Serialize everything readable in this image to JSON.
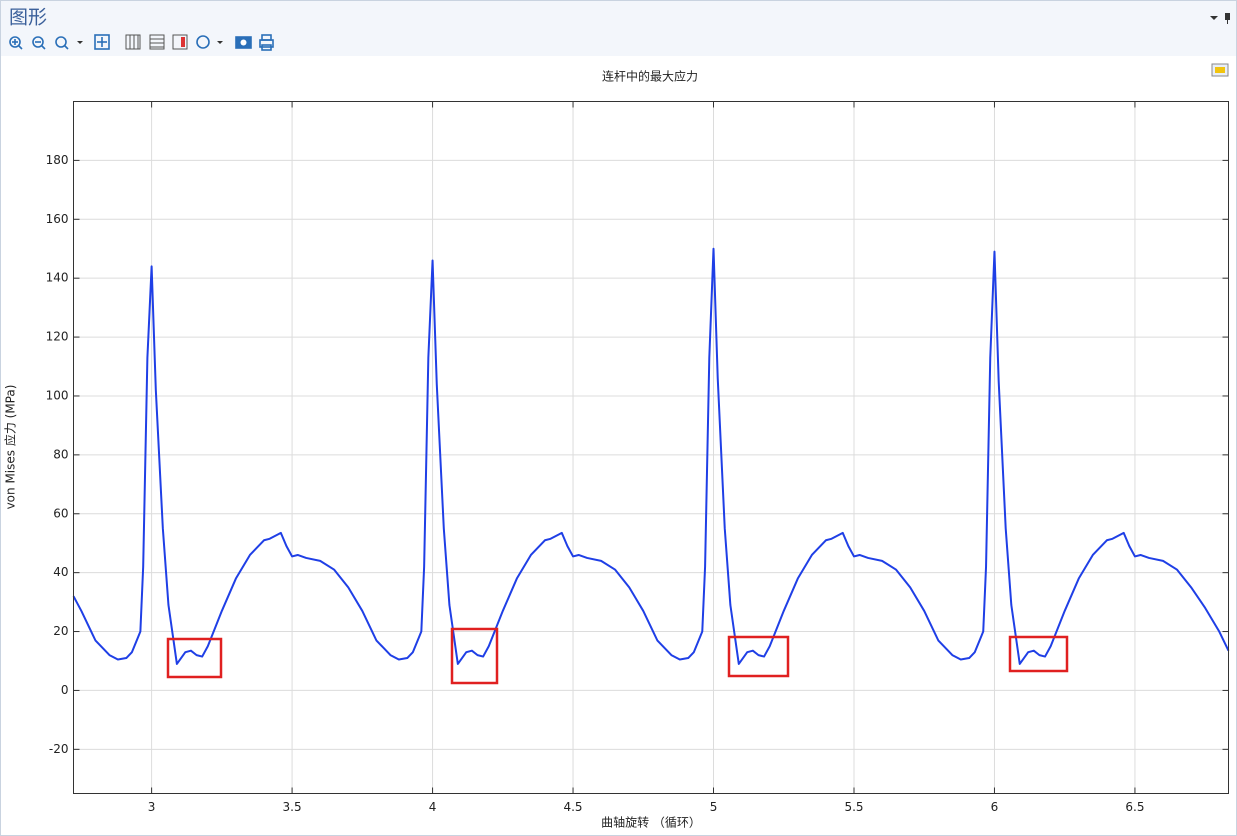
{
  "header": {
    "title": "图形"
  },
  "chart_data": {
    "type": "line",
    "title": "连杆中的最大应力",
    "xlabel": "曲轴旋转 （循环）",
    "ylabel": "von Mises 应力 (MPa)",
    "x": [
      2.722,
      2.75,
      2.8,
      2.85,
      2.88,
      2.91,
      2.93,
      2.96,
      2.97,
      2.985,
      3,
      3.015,
      3.04,
      3.06,
      3.09,
      3.12,
      3.14,
      3.16,
      3.18,
      3.2,
      3.25,
      3.3,
      3.35,
      3.4,
      3.42,
      3.45,
      3.46,
      3.48,
      3.5,
      3.52,
      3.55,
      3.6,
      3.65,
      3.7,
      3.75,
      3.8,
      3.85,
      3.88,
      3.91,
      3.93,
      3.96,
      3.97,
      3.985,
      4,
      4.015,
      4.04,
      4.06,
      4.09,
      4.12,
      4.14,
      4.16,
      4.18,
      4.2,
      4.25,
      4.3,
      4.35,
      4.4,
      4.42,
      4.45,
      4.46,
      4.48,
      4.5,
      4.52,
      4.55,
      4.6,
      4.65,
      4.7,
      4.75,
      4.8,
      4.85,
      4.88,
      4.91,
      4.93,
      4.96,
      4.97,
      4.985,
      5,
      5.015,
      5.04,
      5.06,
      5.09,
      5.12,
      5.14,
      5.16,
      5.18,
      5.2,
      5.25,
      5.3,
      5.35,
      5.4,
      5.42,
      5.45,
      5.46,
      5.48,
      5.5,
      5.52,
      5.55,
      5.6,
      5.65,
      5.7,
      5.75,
      5.8,
      5.85,
      5.88,
      5.91,
      5.93,
      5.96,
      5.97,
      5.985,
      6,
      6.015,
      6.04,
      6.06,
      6.09,
      6.12,
      6.14,
      6.16,
      6.18,
      6.2,
      6.25,
      6.3,
      6.35,
      6.4,
      6.42,
      6.45,
      6.46,
      6.48,
      6.5,
      6.52,
      6.55,
      6.6,
      6.65,
      6.7,
      6.75,
      6.8,
      6.833
    ],
    "values": [
      32,
      27,
      17,
      12,
      10.5,
      11,
      13,
      20,
      42,
      113,
      144,
      102,
      55,
      29,
      9,
      13,
      13.5,
      12,
      11.5,
      15,
      27,
      38,
      46,
      51,
      51.5,
      53,
      53.5,
      49,
      45.5,
      46,
      45,
      44,
      41,
      35,
      27,
      17,
      12,
      10.5,
      11,
      13,
      20,
      42,
      113,
      146,
      104,
      55,
      29,
      9,
      13,
      13.5,
      12,
      11.5,
      15,
      27,
      38,
      46,
      51,
      51.5,
      53,
      53.5,
      49,
      45.5,
      46,
      45,
      44,
      41,
      35,
      27,
      17,
      12,
      10.5,
      11,
      13,
      20,
      42,
      113,
      150,
      106,
      55,
      29,
      9,
      13,
      13.5,
      12,
      11.5,
      15,
      27,
      38,
      46,
      51,
      51.5,
      53,
      53.5,
      49,
      45.5,
      46,
      45,
      44,
      41,
      35,
      27,
      17,
      12,
      10.5,
      11,
      13,
      20,
      42,
      113,
      149,
      105,
      55,
      29,
      9,
      13,
      13.5,
      12,
      11.5,
      15,
      27,
      38,
      46,
      51,
      51.5,
      53,
      53.5,
      49,
      45.5,
      46,
      45,
      44,
      41,
      35,
      28,
      20,
      13.5
    ],
    "color": "#1f3fe6",
    "xlim": [
      2.722,
      6.833
    ],
    "xticks": [
      3,
      3.5,
      4,
      4.5,
      5,
      5.5,
      6,
      6.5
    ],
    "ylim": [
      -35,
      200
    ],
    "yticks": [
      -20,
      0,
      20,
      40,
      60,
      80,
      100,
      120,
      140,
      160,
      180
    ],
    "grid": true
  }
}
